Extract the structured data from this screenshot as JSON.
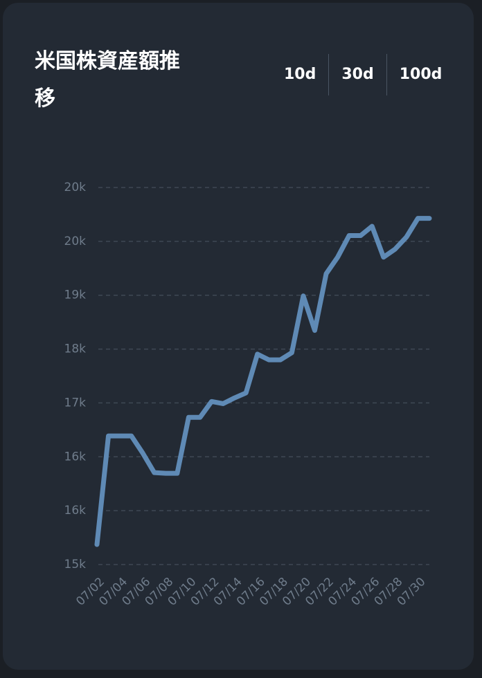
{
  "title": "米国株資産額推移",
  "tabs": [
    "10d",
    "30d",
    "100d"
  ],
  "chart_data": {
    "type": "line",
    "categories": [
      "07/02",
      null,
      "07/04",
      null,
      "07/06",
      null,
      "07/08",
      null,
      "07/10",
      null,
      "07/12",
      null,
      "07/14",
      null,
      "07/16",
      null,
      "07/18",
      null,
      "07/20",
      null,
      "07/22",
      null,
      "07/24",
      null,
      "07/26",
      null,
      "07/28",
      null,
      "07/30",
      null
    ],
    "series": [
      {
        "name": "米国株資産額",
        "color": "#5f8ab5",
        "values": [
          15279,
          16791,
          16791,
          16791,
          16550,
          16280,
          16270,
          16270,
          17050,
          17050,
          17270,
          17240,
          17320,
          17390,
          17930,
          17850,
          17850,
          17950,
          18740,
          18260,
          19050,
          19280,
          19580,
          19580,
          19710,
          19280,
          19390,
          19560,
          19820,
          19820
        ]
      }
    ],
    "ylim": [
      15000,
      20250
    ],
    "yticks": [
      {
        "value": 15000,
        "label": "15k"
      },
      {
        "value": 15750,
        "label": "16k"
      },
      {
        "value": 16500,
        "label": "16k"
      },
      {
        "value": 17250,
        "label": "17k"
      },
      {
        "value": 18000,
        "label": "18k"
      },
      {
        "value": 18750,
        "label": "19k"
      },
      {
        "value": 19500,
        "label": "20k"
      },
      {
        "value": 20250,
        "label": "20k"
      }
    ],
    "grid": true
  }
}
